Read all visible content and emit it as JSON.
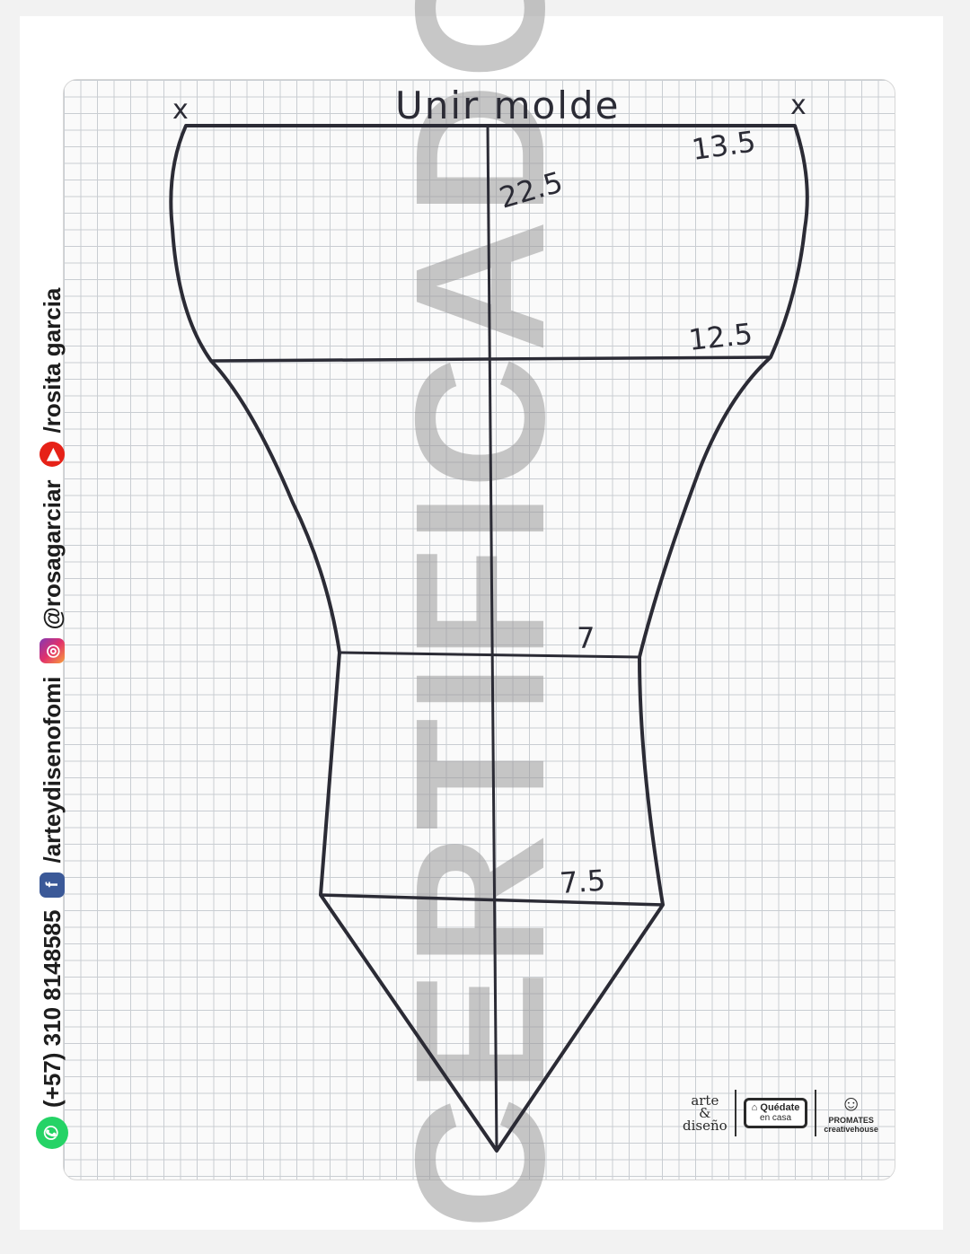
{
  "sheet": {
    "title": "Unir molde",
    "corner_marks": [
      "x",
      "x"
    ],
    "measurements": {
      "top": "13.5",
      "height": "22.5",
      "upper_waist": "12.5",
      "mid": "7",
      "lower": "7.5"
    },
    "watermark": "CERTIFICADO"
  },
  "contact": {
    "phone": "(+57) 310 8148585",
    "facebook": "/arteydisenofomi",
    "instagram": "@rosagarciar",
    "youtube": "/rosita garcia"
  },
  "icons": {
    "phone": "whatsapp-icon",
    "facebook": "facebook-icon",
    "instagram": "instagram-icon",
    "youtube": "youtube-icon"
  },
  "logos": {
    "arte": [
      "arte",
      "&",
      "diseño"
    ],
    "home_title": "Quédate",
    "home_sub": "en casa",
    "promates": "PROMATES",
    "promates_sub": "creativehouse"
  },
  "colors": {
    "ink": "#2b2b35",
    "grid": "#c9cdd2",
    "watermark": "#9a9a9a",
    "whatsapp": "#25d366",
    "facebook": "#3b5998",
    "youtube": "#e62117"
  }
}
